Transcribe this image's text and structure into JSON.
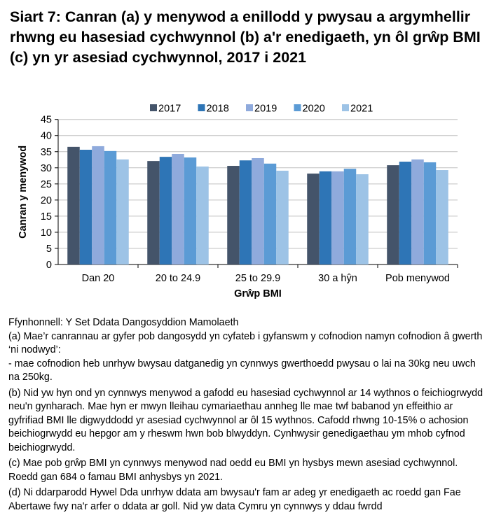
{
  "title": "Siart 7: Canran (a) y menywod a enillodd y pwysau a argymhellir rhwng eu hasesiad cychwynnol (b) a'r enedigaeth, yn ôl grŵp BMI (c) yn yr asesiad cychwynnol, 2017 i 2021",
  "chart_data": {
    "type": "bar",
    "categories": [
      "Dan 20",
      "20 to 24.9",
      "25 to 29.9",
      "30 a hŷn",
      "Pob menywod"
    ],
    "series": [
      {
        "name": "2017",
        "color": "#44546A",
        "values": [
          36.5,
          32.1,
          30.6,
          28.2,
          30.8
        ]
      },
      {
        "name": "2018",
        "color": "#2E75B6",
        "values": [
          35.6,
          33.4,
          32.3,
          28.9,
          31.9
        ]
      },
      {
        "name": "2019",
        "color": "#8FAADC",
        "values": [
          36.7,
          34.3,
          33.0,
          28.9,
          32.6
        ]
      },
      {
        "name": "2020",
        "color": "#5B9BD5",
        "values": [
          35.2,
          33.2,
          31.3,
          29.7,
          31.7
        ]
      },
      {
        "name": "2021",
        "color": "#9DC3E6",
        "values": [
          32.6,
          30.4,
          29.1,
          28.0,
          29.3
        ]
      }
    ],
    "xlabel": "Grŵp BMI",
    "ylabel": "Canran y menywod",
    "ylim": [
      0,
      45
    ],
    "yticks": [
      "0",
      "5",
      "10",
      "15",
      "20",
      "25",
      "30",
      "35",
      "40",
      "45"
    ],
    "grid": true,
    "legend": "top"
  },
  "notes": [
    "Ffynhonnell: Y Set Ddata Dangosyddion Mamolaeth\n(a) Mae’r canrannau ar gyfer pob dangosydd yn cyfateb i gyfanswm y cofnodion namyn cofnodion â gwerth ‘ni nodwyd’:\n - mae cofnodion heb unrhyw bwysau datganedig yn cynnwys gwerthoedd pwysau o lai na 30kg neu uwch na 250kg.",
    "(b) Nid yw hyn ond yn cynnwys menywod a gafodd eu hasesiad cychwynnol ar 14 wythnos o feichiogrwydd neu'n gynharach. Mae hyn er mwyn lleihau cymariaethau annheg lle mae twf babanod yn effeithio ar gyfrifiad BMI lle digwyddodd yr asesiad cychwynnol ar ôl 15 wythnos. Cafodd rhwng 10-15% o achosion beichiogrwydd eu hepgor am y rheswm hwn bob blwyddyn. Cynhwysir genedigaethau ym mhob cyfnod beichiogrwydd.",
    "(c) Mae pob grŵp BMI yn cynnwys menywod nad oedd eu BMI yn hysbys mewn asesiad cychwynnol. Roedd gan 684 o famau BMI anhysbys yn 2021.",
    "(d) Ni ddarparodd Hywel Dda unrhyw ddata am bwysau'r fam ar adeg yr enedigaeth ac roedd gan Fae Abertawe fwy na'r arfer o ddata ar goll. Nid yw data Cymru yn cynnwys y ddau fwrdd"
  ]
}
